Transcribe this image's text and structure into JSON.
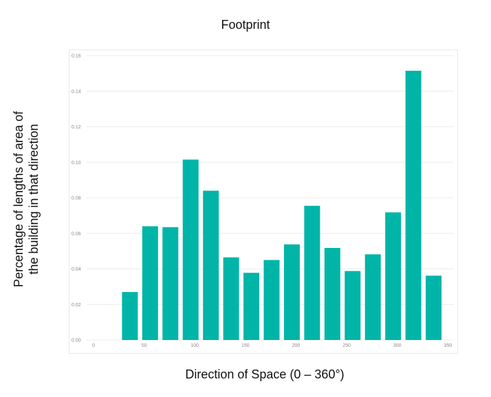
{
  "chart_data": {
    "type": "bar",
    "title": "Footprint",
    "xlabel": "Direction of Space (0 – 360°)",
    "ylabel": "Percentage of lengths  of area of the building in that direction",
    "ylabel_lines": [
      "Percentage of lengths  of area of",
      "the building in that direction"
    ],
    "categories": [
      40,
      60,
      80,
      100,
      120,
      140,
      160,
      180,
      200,
      220,
      240,
      260,
      280,
      300,
      320,
      340
    ],
    "values": [
      0.027,
      0.064,
      0.0635,
      0.1015,
      0.084,
      0.0465,
      0.0378,
      0.045,
      0.0538,
      0.0755,
      0.0518,
      0.0388,
      0.0482,
      0.0718,
      0.1515,
      0.0362
    ],
    "xlim": [
      0,
      360
    ],
    "ylim": [
      0,
      0.16
    ],
    "x_ticks": [
      0,
      50,
      100,
      150,
      200,
      250,
      300,
      350
    ],
    "x_tick_labels": [
      "0",
      "50",
      "100",
      "150",
      "200",
      "250",
      "300",
      "350"
    ],
    "y_ticks": [
      0,
      0.02,
      0.04,
      0.06,
      0.08,
      0.1,
      0.12,
      0.14,
      0.16
    ],
    "y_tick_labels": [
      "0.00",
      "0.02",
      "0.04",
      "0.06",
      "0.08",
      "0.10",
      "0.12",
      "0.14",
      "0.16"
    ],
    "grid": true,
    "bar_color": "#00b5a8",
    "grid_color": "#ececec"
  }
}
